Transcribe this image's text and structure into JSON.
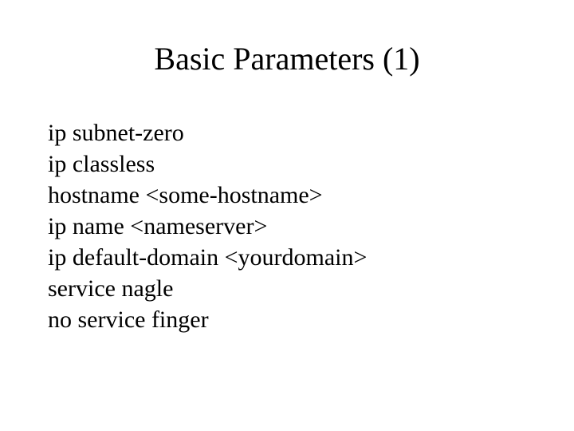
{
  "slide": {
    "title": "Basic Parameters (1)",
    "title_fontsize": 40,
    "title_align": "center",
    "background_color": "#ffffff",
    "text_color": "#000000",
    "font_family": "Times New Roman",
    "config_fontsize": 30,
    "lines": [
      "ip subnet-zero",
      "ip classless",
      "hostname <some-hostname>",
      "ip name <nameserver>",
      "ip default-domain <yourdomain>",
      "service nagle",
      "no service finger"
    ]
  }
}
